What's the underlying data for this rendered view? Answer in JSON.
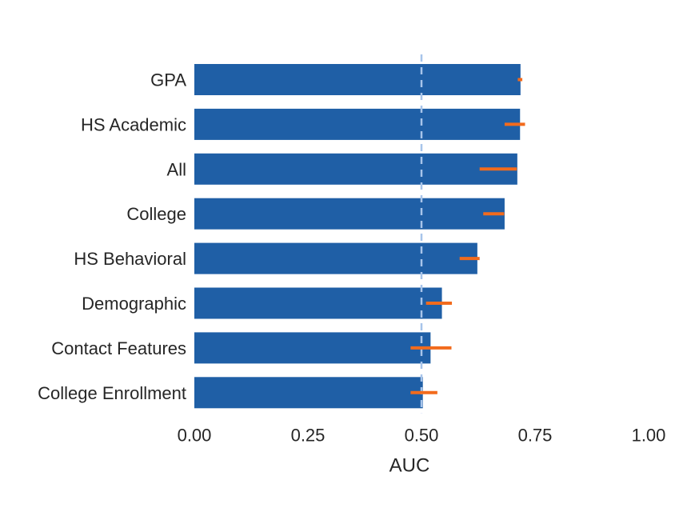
{
  "chart_data": {
    "type": "bar",
    "orientation": "horizontal",
    "categories": [
      "GPA",
      "HS Academic",
      "All",
      "College",
      "HS Behavioral",
      "Demographic",
      "Contact Features",
      "College Enrollment"
    ],
    "values": [
      0.718,
      0.717,
      0.711,
      0.683,
      0.623,
      0.545,
      0.52,
      0.503
    ],
    "error_intervals": [
      [
        0.712,
        0.722
      ],
      [
        0.683,
        0.728
      ],
      [
        0.628,
        0.71
      ],
      [
        0.636,
        0.682
      ],
      [
        0.584,
        0.628
      ],
      [
        0.51,
        0.567
      ],
      [
        0.476,
        0.566
      ],
      [
        0.476,
        0.535
      ]
    ],
    "reference_line": 0.5,
    "xlabel": "AUC",
    "ylabel": "",
    "title": "",
    "xlim": [
      0,
      1
    ],
    "x_ticks": [
      "0.00",
      "0.25",
      "0.50",
      "0.75",
      "1.00"
    ],
    "grid": false,
    "colors": {
      "bar": "#1f5fa6",
      "error": "#f26b1d",
      "reference": "#a7c4ea"
    }
  }
}
